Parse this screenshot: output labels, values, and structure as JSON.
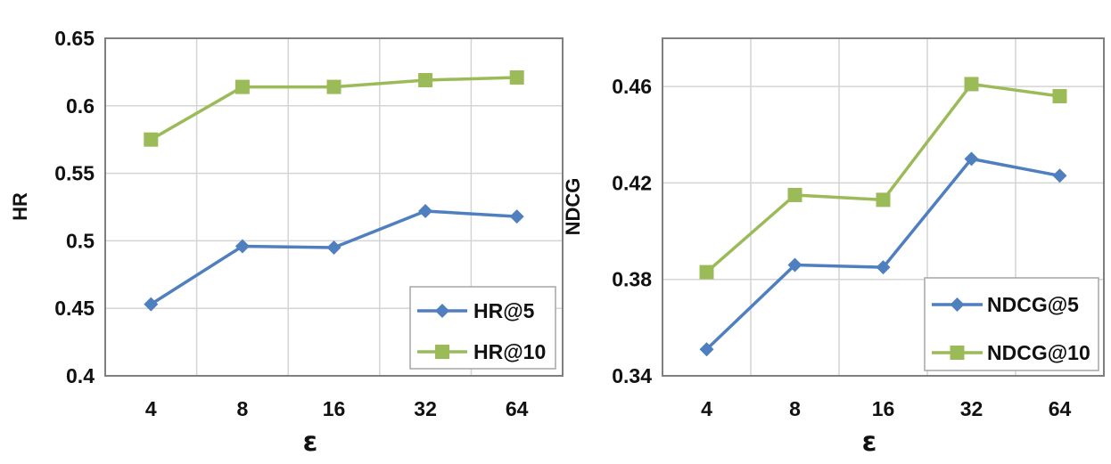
{
  "chart_data": [
    {
      "type": "line",
      "categories": [
        "4",
        "8",
        "16",
        "32",
        "64"
      ],
      "xlabel": "ε",
      "ylabel": "HR",
      "ylim": [
        0.4,
        0.65
      ],
      "yticks": [
        "0.4",
        "0.45",
        "0.5",
        "0.55",
        "0.6",
        "0.65"
      ],
      "grid": true,
      "legend_position": "bottom-right",
      "series": [
        {
          "name": "HR@5",
          "values": [
            0.453,
            0.496,
            0.495,
            0.522,
            0.518
          ],
          "color": "#4f7fbf",
          "marker": "diamond"
        },
        {
          "name": "HR@10",
          "values": [
            0.575,
            0.614,
            0.614,
            0.619,
            0.621
          ],
          "color": "#9bbb59",
          "marker": "square"
        }
      ]
    },
    {
      "type": "line",
      "categories": [
        "4",
        "8",
        "16",
        "32",
        "64"
      ],
      "xlabel": "ε",
      "ylabel": "NDCG",
      "ylim": [
        0.34,
        0.48
      ],
      "yticks": [
        "0.34",
        "0.38",
        "0.42",
        "0.46"
      ],
      "grid": true,
      "legend_position": "bottom-right",
      "series": [
        {
          "name": "NDCG@5",
          "values": [
            0.351,
            0.386,
            0.385,
            0.43,
            0.423
          ],
          "color": "#4f7fbf",
          "marker": "diamond"
        },
        {
          "name": "NDCG@10",
          "values": [
            0.383,
            0.415,
            0.413,
            0.461,
            0.456
          ],
          "color": "#9bbb59",
          "marker": "square"
        }
      ]
    }
  ]
}
